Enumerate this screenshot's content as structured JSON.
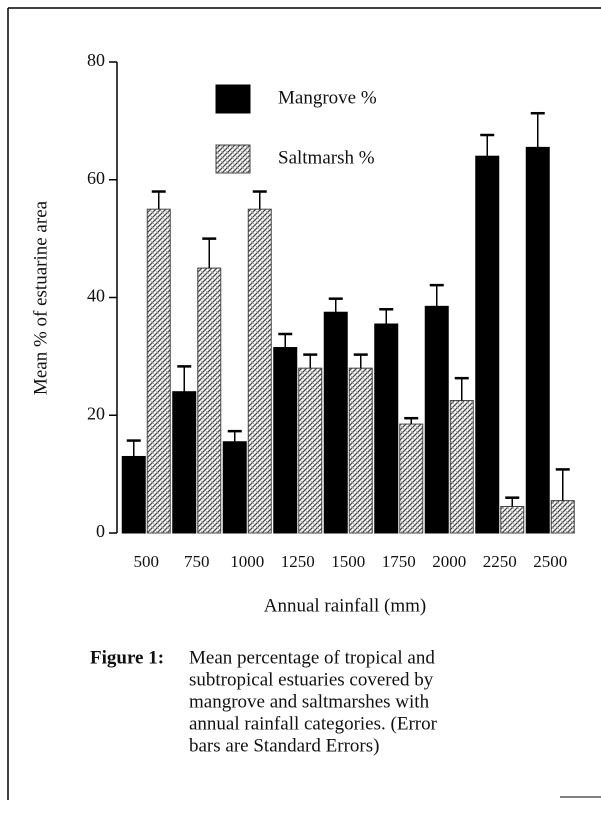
{
  "chart_data": {
    "type": "bar",
    "ylabel": "Mean % of estuarine area",
    "xlabel": "Annual rainfall (mm)",
    "categories": [
      "500",
      "750",
      "1000",
      "1250",
      "1500",
      "1750",
      "2000",
      "2250",
      "2500"
    ],
    "series": [
      {
        "name": "Mangrove %",
        "color": "#000000",
        "hatch": false,
        "values": [
          13,
          24,
          15.5,
          31.5,
          37.5,
          35.5,
          38.5,
          64,
          65.5
        ],
        "errors": [
          2.7,
          4.3,
          1.8,
          2.3,
          2.3,
          2.5,
          3.6,
          3.6,
          5.8
        ]
      },
      {
        "name": "Saltmarsh %",
        "color": "#444444",
        "hatch": true,
        "values": [
          55,
          45,
          55,
          28,
          28,
          18.5,
          22.5,
          4.5,
          5.5
        ],
        "errors": [
          3,
          5,
          3,
          2.3,
          2.3,
          1,
          3.8,
          1.5,
          5.3
        ]
      }
    ],
    "ylim": [
      0,
      80
    ],
    "yticks": [
      0,
      20,
      40,
      60,
      80
    ],
    "grid": false
  },
  "caption": {
    "label": "Figure 1:",
    "lines": [
      "Mean percentage of tropical and",
      "subtropical estuaries covered by",
      "mangrove and saltmarshes with",
      "annual rainfall categories. (Error",
      "bars are Standard Errors)"
    ]
  }
}
